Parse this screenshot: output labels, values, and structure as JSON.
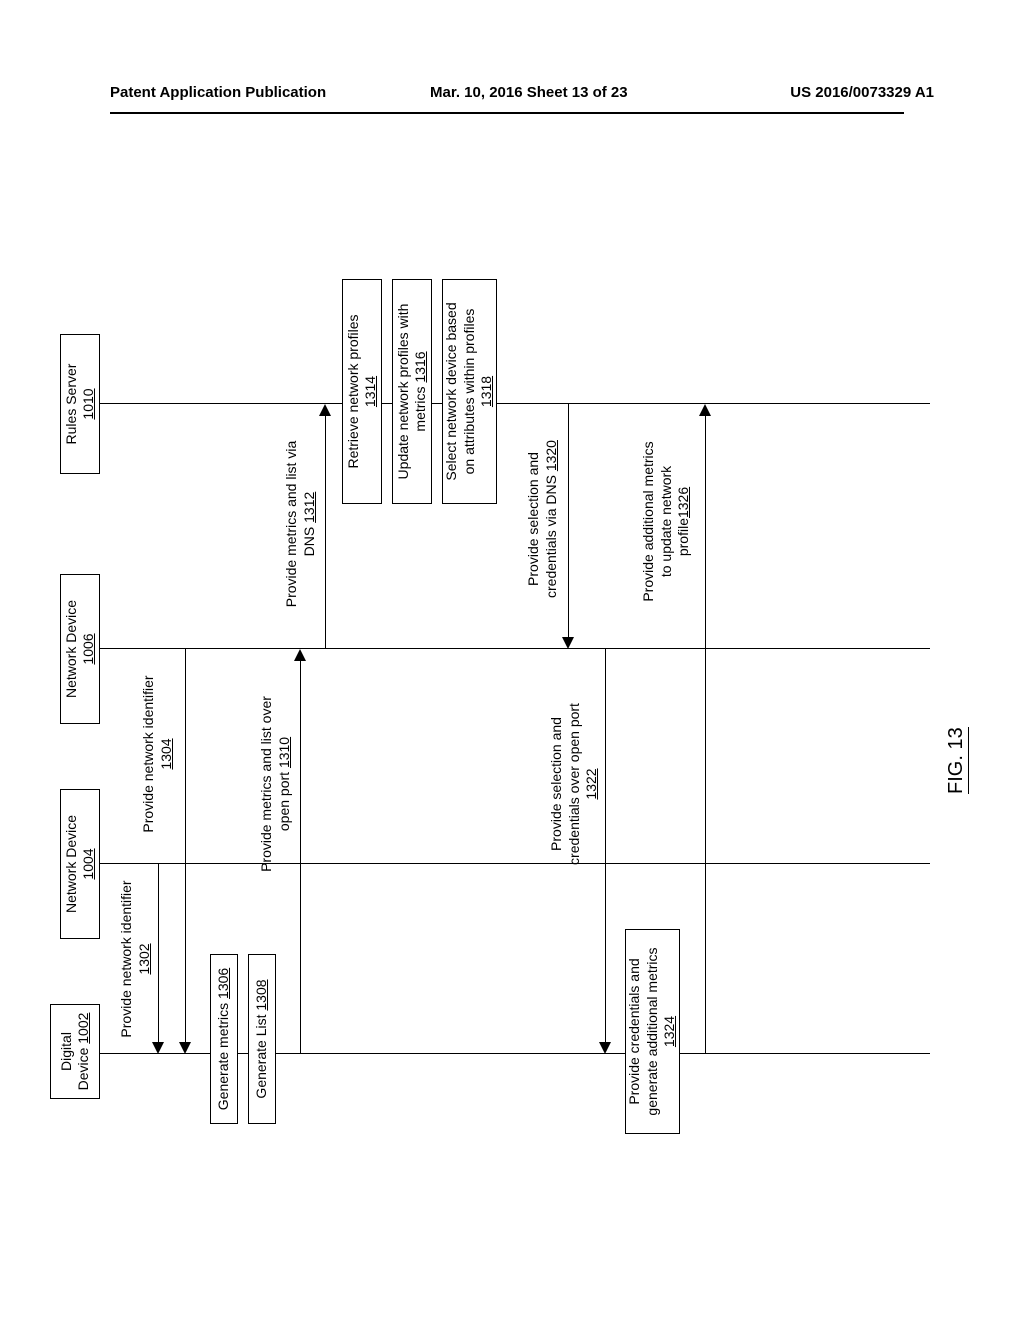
{
  "header": {
    "left": "Patent Application Publication",
    "center": "Mar. 10, 2016   Sheet 13 of 23",
    "right": "US 2016/0073329 A1"
  },
  "lanes": {
    "digital": {
      "label": "Digital\nDevice",
      "ref": "1002"
    },
    "net1": {
      "label": "Network Device",
      "ref": "1004"
    },
    "net2": {
      "label": "Network Device",
      "ref": "1006"
    },
    "rules": {
      "label": "Rules Server",
      "ref": "1010"
    }
  },
  "steps": {
    "s1302": {
      "text": "Provide network identifier",
      "ref": "1302"
    },
    "s1304": {
      "text": "Provide network identifier",
      "ref": "1304"
    },
    "s1306": {
      "text": "Generate metrics",
      "ref": "1306"
    },
    "s1308": {
      "text": "Generate List",
      "ref": "1308"
    },
    "s1310": {
      "text": "Provide metrics and list over\nopen port",
      "ref": "1310"
    },
    "s1312": {
      "text": "Provide metrics and list via\nDNS",
      "ref": "1312"
    },
    "s1314": {
      "text": "Retrieve network profiles",
      "ref": "1314"
    },
    "s1316": {
      "text": "Update network profiles with\nmetrics",
      "ref": "1316"
    },
    "s1318": {
      "text": "Select network device based\non attributes within profiles",
      "ref": "1318"
    },
    "s1320": {
      "text": "Provide selection and\ncredentials via DNS",
      "ref": "1320"
    },
    "s1322": {
      "text": "Provide selection and\ncredentials over open port",
      "ref": "1322"
    },
    "s1324": {
      "text": "Provide credentials and\ngenerate additional metrics",
      "ref": "1324"
    },
    "s1326": {
      "text": "Provide additional metrics\nto update network\nprofile",
      "ref": "1326"
    }
  },
  "figure_label": "FIG. 13",
  "layout": {
    "lane_x": {
      "digital": 140,
      "net1": 330,
      "net2": 545,
      "rules": 790
    },
    "top_of_life": 100,
    "bottom_of_life": 930,
    "colors": {
      "line": "#000000",
      "bg": "#ffffff",
      "text": "#000000"
    },
    "font_size": 14,
    "box_border_width": 1.5
  }
}
